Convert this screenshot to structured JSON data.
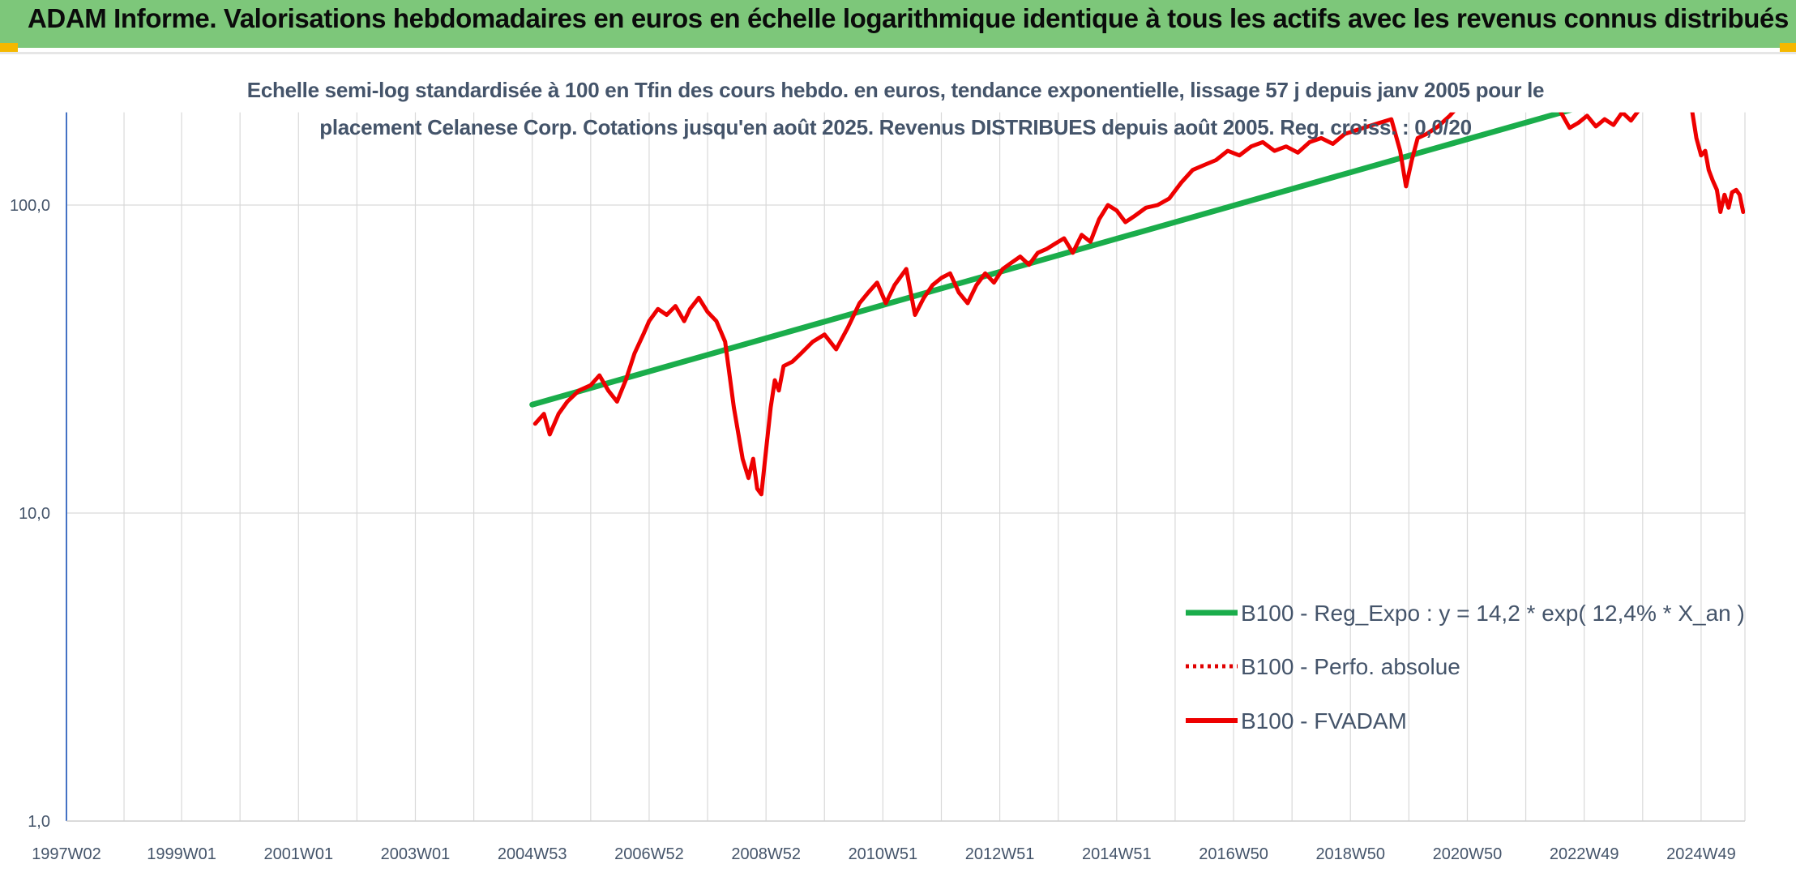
{
  "header": {
    "title": "ADAM Informe. Valorisations hebdomadaires en euros en échelle logarithmique identique à tous les actifs avec les revenus connus distribués"
  },
  "chart_data": {
    "type": "line",
    "title_line1": "Echelle semi-log standardisée à 100 en Tfin des cours hebdo. en euros, tendance exponentielle, lissage 57 j depuis janv 2005 pour le",
    "title_line2": "placement Celanese Corp. Cotations jusqu'en août 2025. Revenus DISTRIBUES depuis août 2005. Reg. croiss. : 0,0/20",
    "y_scale": "log",
    "ylim": [
      1,
      200
    ],
    "y_ticks": [
      1,
      10,
      100
    ],
    "y_tick_labels": [
      "1,0",
      "10,0",
      "100,0"
    ],
    "x_range": [
      1997.03,
      2025.75
    ],
    "x_ticks": [
      1997.03,
      1999.0,
      2001.0,
      2003.0,
      2005.0,
      2007.0,
      2009.0,
      2011.0,
      2013.0,
      2015.0,
      2017.0,
      2019.0,
      2021.0,
      2023.0,
      2025.0
    ],
    "x_tick_labels": [
      "1997W02",
      "1999W01",
      "2001W01",
      "2003W01",
      "2004W53",
      "2006W52",
      "2008W52",
      "2010W51",
      "2012W51",
      "2014W51",
      "2016W50",
      "2018W50",
      "2020W50",
      "2022W49",
      "2024W49"
    ],
    "grid": true,
    "legend_position": "bottom-right",
    "colors": {
      "trend": "#1aad4b",
      "absolute": "#e00000",
      "fvadam": "#ee0000",
      "axis_text": "#44546a",
      "grid": "#d9d9d9"
    },
    "series": [
      {
        "name": "B100 - Reg_Expo : y = 14,2 * exp( 12,4% *  X_an )",
        "style": "solid",
        "x": [
          2005.0,
          2025.75
        ],
        "y": [
          22.5,
          295
        ]
      },
      {
        "name": "B100 - Perfo. absolue",
        "style": "dotted",
        "x": [],
        "y": []
      },
      {
        "name": "B100 - FVADAM",
        "style": "solid",
        "x": [
          2005.05,
          2005.2,
          2005.3,
          2005.45,
          2005.6,
          2005.8,
          2006.0,
          2006.15,
          2006.3,
          2006.45,
          2006.6,
          2006.75,
          2006.9,
          2007.0,
          2007.15,
          2007.3,
          2007.45,
          2007.6,
          2007.7,
          2007.85,
          2008.0,
          2008.15,
          2008.3,
          2008.45,
          2008.6,
          2008.7,
          2008.78,
          2008.85,
          2008.92,
          2009.0,
          2009.08,
          2009.15,
          2009.22,
          2009.3,
          2009.45,
          2009.6,
          2009.8,
          2010.0,
          2010.2,
          2010.4,
          2010.6,
          2010.75,
          2010.9,
          2011.05,
          2011.2,
          2011.4,
          2011.55,
          2011.7,
          2011.85,
          2012.0,
          2012.15,
          2012.3,
          2012.45,
          2012.6,
          2012.75,
          2012.9,
          2013.05,
          2013.2,
          2013.35,
          2013.5,
          2013.65,
          2013.8,
          2013.95,
          2014.1,
          2014.25,
          2014.4,
          2014.55,
          2014.7,
          2014.85,
          2015.0,
          2015.15,
          2015.3,
          2015.5,
          2015.7,
          2015.9,
          2016.1,
          2016.3,
          2016.5,
          2016.7,
          2016.9,
          2017.1,
          2017.3,
          2017.5,
          2017.7,
          2017.9,
          2018.1,
          2018.3,
          2018.5,
          2018.7,
          2018.9,
          2019.1,
          2019.3,
          2019.5,
          2019.7,
          2019.85,
          2019.95,
          2020.05,
          2020.15,
          2020.3,
          2020.5,
          2020.7,
          2020.85
        ],
        "y": [
          19.5,
          21,
          18,
          21,
          23,
          25,
          26,
          28,
          25,
          23,
          27,
          33,
          38,
          42,
          46,
          44,
          47,
          42,
          46,
          50,
          45,
          42,
          36,
          22,
          15,
          13,
          15,
          12,
          11.5,
          16,
          22,
          27,
          25,
          30,
          31,
          33,
          36,
          38,
          34,
          40,
          48,
          52,
          56,
          48,
          55,
          62,
          44,
          50,
          55,
          58,
          60,
          52,
          48,
          55,
          60,
          56,
          62,
          65,
          68,
          64,
          70,
          72,
          75,
          78,
          70,
          80,
          76,
          90,
          100,
          96,
          88,
          92,
          98,
          100,
          105,
          118,
          130,
          135,
          140,
          150,
          145,
          155,
          160,
          150,
          155,
          148,
          160,
          165,
          158,
          170,
          175,
          180,
          185,
          190,
          150,
          115,
          140,
          165,
          170,
          180,
          195,
          210
        ]
      },
      {
        "name": "",
        "style": "solid",
        "x": [
          2022.6,
          2022.75,
          2022.9,
          2023.05,
          2023.2,
          2023.35,
          2023.5,
          2023.65,
          2023.8,
          2023.95
        ],
        "y": [
          200,
          178,
          185,
          195,
          180,
          190,
          182,
          200,
          188,
          205
        ]
      },
      {
        "name": "",
        "style": "solid",
        "x": [
          2024.85,
          2024.92,
          2025.0,
          2025.07,
          2025.13,
          2025.2,
          2025.27,
          2025.33,
          2025.4,
          2025.47,
          2025.53,
          2025.6,
          2025.66,
          2025.72
        ],
        "y": [
          200,
          165,
          145,
          150,
          130,
          120,
          112,
          95,
          108,
          98,
          110,
          112,
          108,
          95
        ]
      }
    ]
  }
}
